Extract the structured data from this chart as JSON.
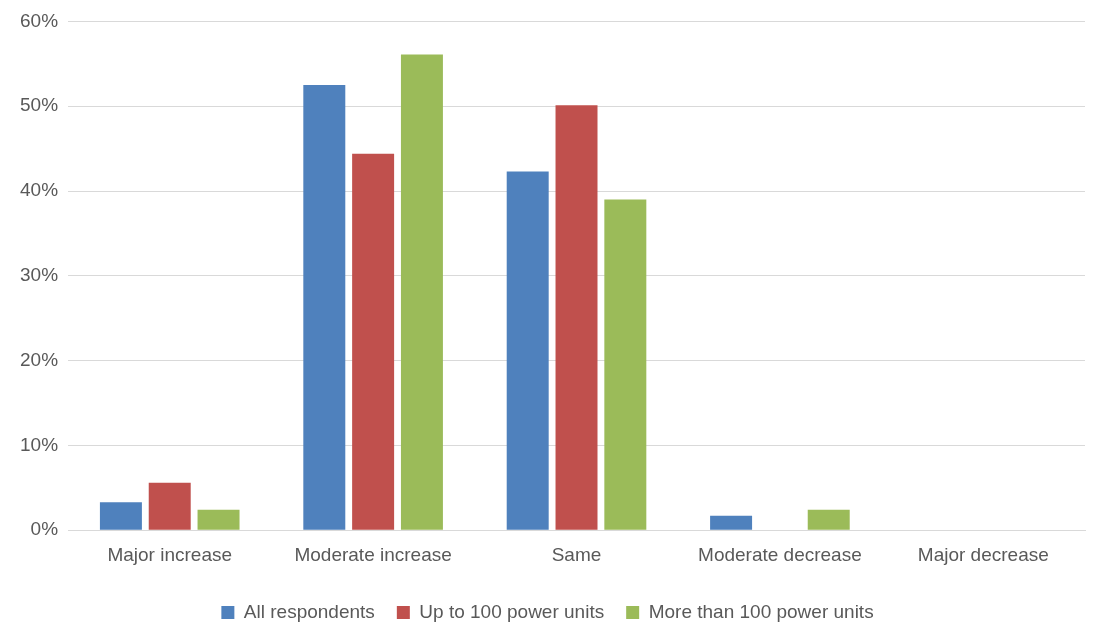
{
  "chart_data": {
    "type": "bar",
    "categories": [
      "Major increase",
      "Moderate increase",
      "Same",
      "Moderate decrease",
      "Major decrease"
    ],
    "series": [
      {
        "name": "All respondents",
        "color": "#4f81bd",
        "values": [
          3.3,
          52.5,
          42.3,
          1.7,
          0
        ]
      },
      {
        "name": "Up to 100 power units",
        "color": "#c0504d",
        "values": [
          5.6,
          44.4,
          50.1,
          0,
          0
        ]
      },
      {
        "name": "More than 100 power units",
        "color": "#9bbb59",
        "values": [
          2.4,
          56.1,
          39.0,
          2.4,
          0
        ]
      }
    ],
    "ylim": [
      0,
      60
    ],
    "yticks": [
      {
        "value": 0,
        "label": "0%"
      },
      {
        "value": 10,
        "label": "10%"
      },
      {
        "value": 20,
        "label": "20%"
      },
      {
        "value": 30,
        "label": "30%"
      },
      {
        "value": 40,
        "label": "40%"
      },
      {
        "value": 50,
        "label": "50%"
      },
      {
        "value": 60,
        "label": "60%"
      }
    ],
    "grid": "y",
    "legend": "bottom"
  }
}
